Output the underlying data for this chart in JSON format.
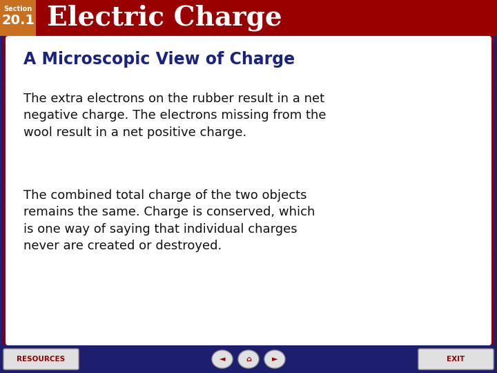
{
  "bg_color": "#1e1e6e",
  "header_bg_color": "#990000",
  "header_orange_color": "#c87020",
  "header_title": "Electric Charge",
  "header_section_label": "Section",
  "header_section_number": "20.1",
  "header_title_color": "#ffffff",
  "header_section_label_color": "#ffffff",
  "header_section_number_color": "#ffffff",
  "content_bg_color": "#ffffff",
  "content_border_color": "#800020",
  "subtitle_text": "A Microscopic View of Charge",
  "subtitle_color": "#1a237e",
  "body_text_1": "The extra electrons on the rubber result in a net\nnegative charge. The electrons missing from the\nwool result in a net positive charge.",
  "body_text_2": "The combined total charge of the two objects\nremains the same. Charge is conserved, which\nis one way of saying that individual charges\nnever are created or destroyed.",
  "body_text_color": "#111111",
  "grid_color": "#2a2a8e",
  "footer_bg_color": "#1e1e6e",
  "resources_text": "RESOURCES",
  "exit_text": "EXIT",
  "button_text_color": "#990000",
  "button_bg_color": "#e0e0e0"
}
